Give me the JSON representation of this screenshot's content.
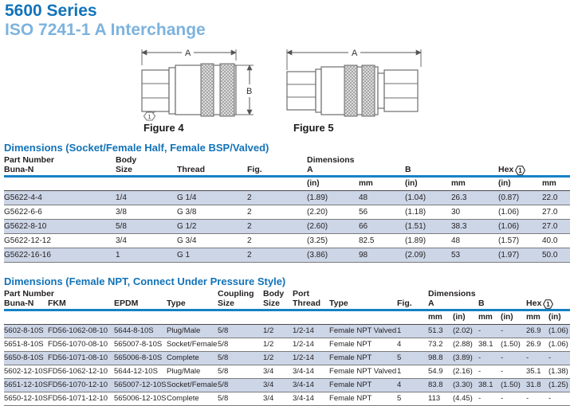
{
  "page": {
    "title": "5600 Series",
    "subtitle": "ISO 7241-1 A Interchange"
  },
  "colors": {
    "title_blue": "#1273b9",
    "subtitle_blue": "#7db3de",
    "section_title_blue": "#1273b9",
    "header_rule_blue": "#1581c6",
    "row_shade": "#cdd6e7",
    "text": "#231f20"
  },
  "figures": [
    {
      "label": "Figure 4",
      "dim_a": "A",
      "dim_b": "B",
      "callout": "1"
    },
    {
      "label": "Figure 5",
      "dim_a": "A"
    }
  ],
  "table1": {
    "title": "Dimensions (Socket/Female Half, Female BSP/Valved)",
    "headers": {
      "part_number": "Part Number",
      "buna": "Buna-N",
      "body": "Body",
      "size": "Size",
      "thread": "Thread",
      "fig": "Fig.",
      "dimensions": "Dimensions",
      "a": "A",
      "b": "B",
      "hex": "Hex",
      "footnote": "1",
      "units": [
        "(in)",
        "mm",
        "(in)",
        "mm",
        "(in)",
        "mm"
      ]
    },
    "rows": [
      [
        "G5622-4-4",
        "1/4",
        "G 1/4",
        "2",
        "(1.89)",
        "48",
        "(1.04)",
        "26.3",
        "(0.87)",
        "22.0"
      ],
      [
        "G5622-6-6",
        "3/8",
        "G 3/8",
        "2",
        "(2.20)",
        "56",
        "(1.18)",
        "30",
        "(1.06)",
        "27.0"
      ],
      [
        "G5622-8-10",
        "5/8",
        "G 1/2",
        "2",
        "(2.60)",
        "66",
        "(1.51)",
        "38.3",
        "(1.06)",
        "27.0"
      ],
      [
        "G5622-12-12",
        "3/4",
        "G 3/4",
        "2",
        "(3.25)",
        "82.5",
        "(1.89)",
        "48",
        "(1.57)",
        "40.0"
      ],
      [
        "G5622-16-16",
        "1",
        "G 1",
        "2",
        "(3.86)",
        "98",
        "(2.09)",
        "53",
        "(1.97)",
        "50.0"
      ]
    ]
  },
  "table2": {
    "title": "Dimensions (Female NPT, Connect Under Pressure Style)",
    "headers": {
      "part_number": "Part Number",
      "buna": "Buna-N",
      "fkm": "FKM",
      "epdm": "EPDM",
      "type": "Type",
      "coupling": "Coupling",
      "coupling_size": "Size",
      "body": "Body",
      "body_size": "Size",
      "port": "Port",
      "port_thread": "Thread",
      "type2": "Type",
      "fig": "Fig.",
      "dimensions": "Dimensions",
      "a": "A",
      "b": "B",
      "hex": "Hex",
      "footnote": "1",
      "units": [
        "mm",
        "(in)",
        "mm",
        "(in)",
        "mm",
        "(in)"
      ]
    },
    "rows": [
      [
        "5602-8-10S",
        "FD56-1062-08-10",
        "5644-8-10S",
        "Plug/Male",
        "5/8",
        "1/2",
        "1/2-14",
        "Female NPT Valved",
        "1",
        "51.3",
        "(2.02)",
        "-",
        "-",
        "26.9",
        "(1.06)"
      ],
      [
        "5651-8-10S",
        "FD56-1070-08-10",
        "565007-8-10S",
        "Socket/Female",
        "5/8",
        "1/2",
        "1/2-14",
        "Female NPT",
        "4",
        "73.2",
        "(2.88)",
        "38.1",
        "(1.50)",
        "26.9",
        "(1.06)"
      ],
      [
        "5650-8-10S",
        "FD56-1071-08-10",
        "565006-8-10S",
        "Complete",
        "5/8",
        "1/2",
        "1/2-14",
        "Female NPT",
        "5",
        "98.8",
        "(3.89)",
        "-",
        "-",
        "-",
        "-"
      ],
      [
        "5602-12-10S",
        "FD56-1062-12-10",
        "5644-12-10S",
        "Plug/Male",
        "5/8",
        "3/4",
        "3/4-14",
        "Female NPT Valved",
        "1",
        "54.9",
        "(2.16)",
        "-",
        "-",
        "35.1",
        "(1.38)"
      ],
      [
        "5651-12-10S",
        "FD56-1070-12-10",
        "565007-12-10S",
        "Socket/Female",
        "5/8",
        "3/4",
        "3/4-14",
        "Female NPT",
        "4",
        "83.8",
        "(3.30)",
        "38.1",
        "(1.50)",
        "31.8",
        "(1.25)"
      ],
      [
        "5650-12-10S",
        "FD56-1071-12-10",
        "565006-12-10S",
        "Complete",
        "5/8",
        "3/4",
        "3/4-14",
        "Female NPT",
        "5",
        "113",
        "(4.45)",
        "-",
        "-",
        "-",
        "-"
      ]
    ]
  }
}
